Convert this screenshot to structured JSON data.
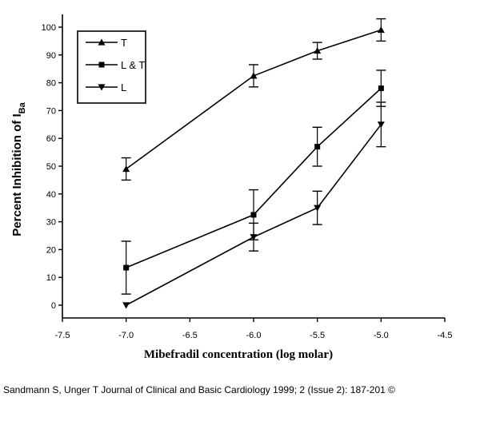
{
  "chart_data": {
    "type": "line",
    "xlabel": "Mibefradil concentration (log molar)",
    "ylabel_main": "Percent Inhibition of I",
    "ylabel_sub": "Ba",
    "xlim": [
      -7.5,
      -4.5
    ],
    "ylim": [
      0,
      100
    ],
    "x_ticks": [
      -7.5,
      -7.0,
      -6.5,
      -6.0,
      -5.5,
      -5.0,
      -4.5
    ],
    "x_tick_labels": [
      "-7.5",
      "-7.0",
      "-6.5",
      "-6.0",
      "-5.5",
      "-5.0",
      "-4.5"
    ],
    "y_ticks": [
      0,
      10,
      20,
      30,
      40,
      50,
      60,
      70,
      80,
      90,
      100
    ],
    "y_tick_labels": [
      "0",
      "10",
      "20",
      "30",
      "40",
      "50",
      "60",
      "70",
      "80",
      "90",
      "100"
    ],
    "grid": false,
    "legend_position": "top-left",
    "series": [
      {
        "name": "T",
        "marker": "triangle-up",
        "x": [
          -7.0,
          -6.0,
          -5.5,
          -5.0
        ],
        "y": [
          49,
          82.5,
          91.5,
          99
        ],
        "err_low": [
          4,
          4,
          3,
          4
        ],
        "err_high": [
          4,
          4,
          3,
          4
        ]
      },
      {
        "name": "L & T",
        "marker": "square",
        "x": [
          -7.0,
          -6.0,
          -5.5,
          -5.0
        ],
        "y": [
          13.5,
          32.5,
          57,
          78
        ],
        "err_low": [
          9.5,
          9,
          7,
          6.5
        ],
        "err_high": [
          9.5,
          9,
          7,
          6.5
        ]
      },
      {
        "name": "L",
        "marker": "triangle-down",
        "x": [
          -7.0,
          -6.0,
          -5.5,
          -5.0
        ],
        "y": [
          0,
          24.5,
          35,
          65
        ],
        "err_low": [
          0,
          5,
          6,
          8
        ],
        "err_high": [
          0,
          5,
          6,
          8
        ]
      }
    ]
  },
  "citation": "Sandmann S, Unger T Journal of Clinical and Basic Cardiology 1999; 2 (Issue 2): 187-201 ©"
}
